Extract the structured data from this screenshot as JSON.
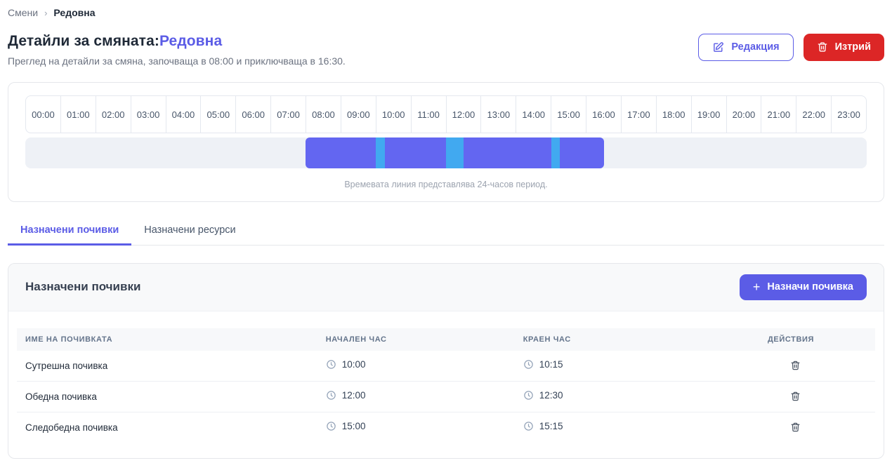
{
  "colors": {
    "accent": "#5B5CE6",
    "danger": "#DC2626",
    "shift_bar": "#6366F1",
    "break_segment": "#41A9F0",
    "track": "#EEF1F6"
  },
  "icons": {
    "breadcrumb_separator": "chevron-right",
    "edit": "pencil-square",
    "delete": "trash",
    "add": "plus",
    "clock": "clock",
    "row_delete": "trash"
  },
  "breadcrumb": {
    "items": [
      "Смени",
      "Редовна"
    ],
    "separator": "›"
  },
  "header": {
    "title_prefix": "Детайли за смяната:",
    "title_highlight": "Редовна",
    "subtitle": "Преглед на детайли за смяна, започваща в 08:00 и приключваща в 16:30.",
    "edit_label": "Редакция",
    "delete_label": "Изтрий"
  },
  "timeline": {
    "hours": [
      "00:00",
      "01:00",
      "02:00",
      "03:00",
      "04:00",
      "05:00",
      "06:00",
      "07:00",
      "08:00",
      "09:00",
      "10:00",
      "11:00",
      "12:00",
      "13:00",
      "14:00",
      "15:00",
      "16:00",
      "17:00",
      "18:00",
      "19:00",
      "20:00",
      "21:00",
      "22:00",
      "23:00"
    ],
    "shift": {
      "start": "08:00",
      "end": "16:30",
      "start_pct": 33.333,
      "end_pct": 68.75
    },
    "breaks": [
      {
        "start": "10:00",
        "end": "10:15",
        "start_pct": 41.667,
        "width_pct": 1.042
      },
      {
        "start": "12:00",
        "end": "12:30",
        "start_pct": 50.0,
        "width_pct": 2.083
      },
      {
        "start": "15:00",
        "end": "15:15",
        "start_pct": 62.5,
        "width_pct": 1.042
      }
    ],
    "caption": "Времевата линия представлява 24-часов период."
  },
  "tabs": [
    {
      "label": "Назначени почивки",
      "active": true
    },
    {
      "label": "Назначени ресурси",
      "active": false
    }
  ],
  "breaks_card": {
    "title": "Назначени почивки",
    "add_button_label": "Назначи почивка",
    "table": {
      "headers": [
        "ИМЕ НА ПОЧИВКАТА",
        "НАЧАЛЕН ЧАС",
        "КРАЕН ЧАС",
        "ДЕЙСТВИЯ"
      ],
      "rows": [
        {
          "name": "Сутрешна почивка",
          "start": "10:00",
          "end": "10:15"
        },
        {
          "name": "Обедна почивка",
          "start": "12:00",
          "end": "12:30"
        },
        {
          "name": "Следобедна почивка",
          "start": "15:00",
          "end": "15:15"
        }
      ]
    }
  }
}
